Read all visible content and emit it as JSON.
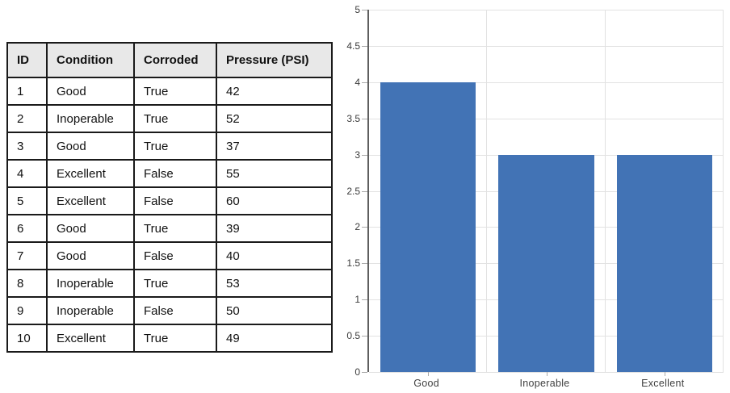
{
  "table": {
    "headers": [
      "ID",
      "Condition",
      "Corroded",
      "Pressure (PSI)"
    ],
    "rows": [
      [
        "1",
        "Good",
        "True",
        "42"
      ],
      [
        "2",
        "Inoperable",
        "True",
        "52"
      ],
      [
        "3",
        "Good",
        "True",
        "37"
      ],
      [
        "4",
        "Excellent",
        "False",
        "55"
      ],
      [
        "5",
        "Excellent",
        "False",
        "60"
      ],
      [
        "6",
        "Good",
        "True",
        "39"
      ],
      [
        "7",
        "Good",
        "False",
        "40"
      ],
      [
        "8",
        "Inoperable",
        "True",
        "53"
      ],
      [
        "9",
        "Inoperable",
        "False",
        "50"
      ],
      [
        "10",
        "Excellent",
        "True",
        "49"
      ]
    ]
  },
  "chart_data": {
    "type": "bar",
    "categories": [
      "Good",
      "Inoperable",
      "Excellent"
    ],
    "values": [
      4,
      3,
      3
    ],
    "title": "",
    "xlabel": "",
    "ylabel": "",
    "ylim": [
      0,
      5
    ],
    "ytick_step": 0.5,
    "ytick_labels": [
      "0",
      "0.5",
      "1",
      "1.5",
      "2",
      "2.5",
      "3",
      "3.5",
      "4",
      "4.5",
      "5"
    ],
    "grid": true,
    "legend_position": "none",
    "bar_color": "#4273b5"
  },
  "colors": {
    "bar": "#4273b5",
    "table_header_bg": "#e8e8e8",
    "table_border": "#1a1a1a",
    "gridline": "#e2e2e2",
    "axis_line": "#5f5f5f"
  }
}
